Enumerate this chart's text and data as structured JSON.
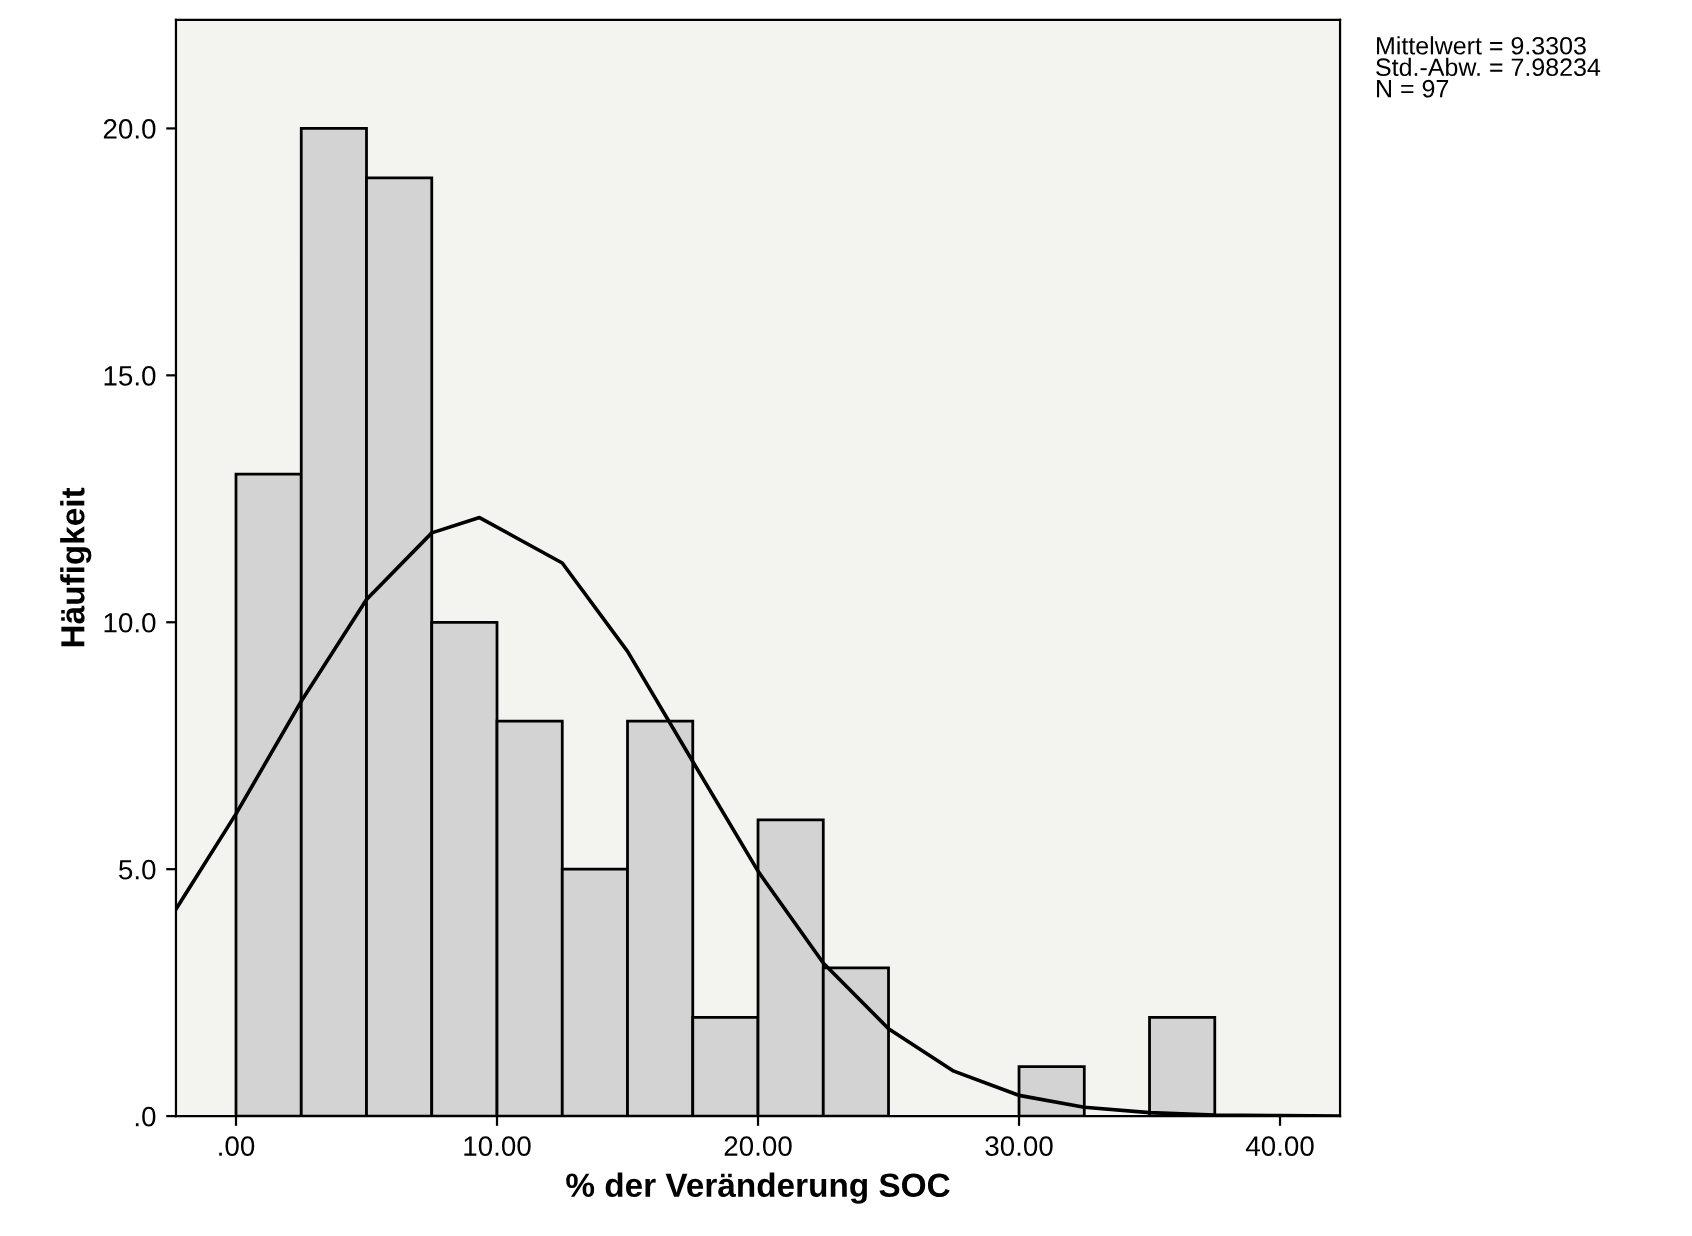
{
  "chart_data": {
    "type": "histogram",
    "xlabel": "% der Veränderung SOC",
    "ylabel": "Häufigkeit",
    "annotations": [
      "Mittelwert = 9.3303\nStd.-Abw. = 7.98234\nN = 97"
    ],
    "series": [
      {
        "color": "#d3d3d3",
        "bins": [
          0,
          2.5,
          5,
          7.5,
          10,
          12.5,
          15,
          17.5,
          20,
          22.5,
          25,
          27.5,
          30,
          32.5,
          35,
          37.5
        ],
        "values": [
          13,
          20,
          19,
          10,
          8,
          5,
          8,
          2,
          6,
          3,
          0,
          0,
          1,
          0,
          2
        ]
      },
      {
        "type": "line",
        "color": "#000000",
        "x": [
          -2.3,
          0,
          2.5,
          5,
          7.5,
          9.33,
          12.5,
          15,
          17.5,
          20,
          22.5,
          25,
          27.5,
          30,
          32.5,
          35,
          37.5,
          40,
          42.3
        ],
        "values": [
          4.19,
          6.12,
          8.4,
          10.46,
          11.81,
          12.12,
          11.2,
          9.41,
          7.18,
          4.96,
          3.1,
          1.77,
          0.91,
          0.42,
          0.18,
          0.07,
          0.02,
          0.01,
          0.0
        ]
      }
    ],
    "xlim": [
      -2.3,
      42.3
    ],
    "ylim": [
      0,
      22.2
    ],
    "xticks": [
      {
        "value": 0,
        "label": ".00"
      },
      {
        "value": 10,
        "label": "10.00"
      },
      {
        "value": 20,
        "label": "20.00"
      },
      {
        "value": 30,
        "label": "30.00"
      },
      {
        "value": 40,
        "label": "40.00"
      }
    ],
    "yticks": [
      {
        "value": 0,
        "label": ".0"
      },
      {
        "value": 5,
        "label": "5.0"
      },
      {
        "value": 10,
        "label": "10.0"
      },
      {
        "value": 15,
        "label": "15.0"
      },
      {
        "value": 20,
        "label": "20.0"
      }
    ],
    "grid": false
  }
}
